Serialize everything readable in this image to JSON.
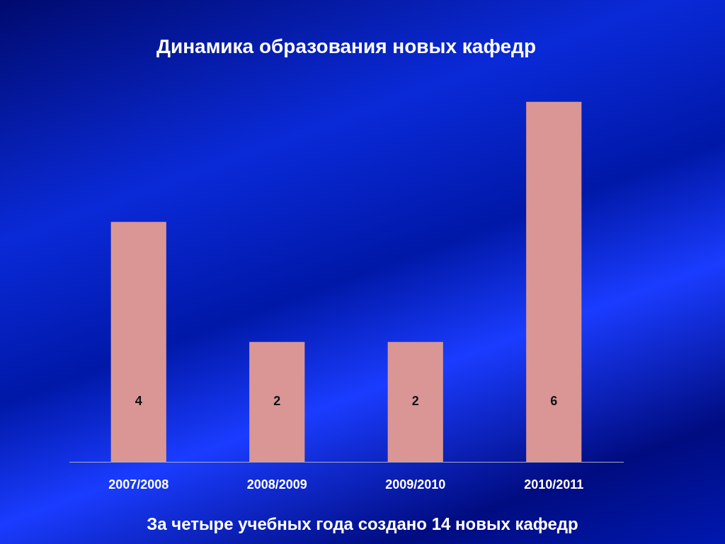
{
  "chart_data": {
    "type": "bar",
    "title": "Динамика образования новых кафедр",
    "categories": [
      "2007/2008",
      "2008/2009",
      "2009/2010",
      "2010/2011"
    ],
    "values": [
      4,
      2,
      2,
      6
    ],
    "color": "#d99694",
    "data_labels": true,
    "annotations": [
      "За четыре учебных года создано 14 новых кафедр"
    ]
  }
}
